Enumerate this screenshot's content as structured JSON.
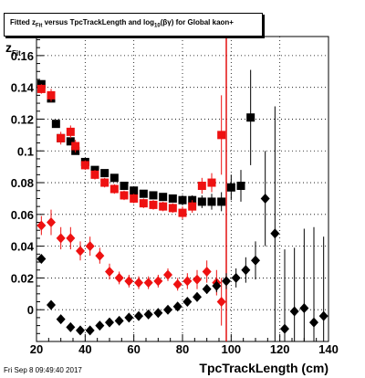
{
  "chart_data": {
    "type": "scatter",
    "title_prefix": "Fitted  z",
    "title_sub": "Fit",
    "title_mid": "  versus TpcTrackLength and log",
    "title_sub2": "10",
    "title_suffix": "(βγ) for Global kaon+",
    "ylabel_main": "z",
    "ylabel_sub": "Fit",
    "xlabel": "TpcTrackLength (cm)",
    "xlim": [
      20,
      140
    ],
    "ylim": [
      -0.02,
      0.172
    ],
    "xticks": [
      20,
      40,
      60,
      80,
      100,
      120,
      140
    ],
    "yticks": [
      0,
      0.02,
      0.04,
      0.06,
      0.08,
      0.1,
      0.12,
      0.14,
      0.16
    ],
    "ytick_labels": [
      "0",
      "0.02",
      "0.04",
      "0.06",
      "0.08",
      "0.1",
      "0.12",
      "0.14",
      "0.16"
    ],
    "grid": true,
    "vline_x": 98,
    "series": [
      {
        "color": "#000000",
        "marker": "square",
        "points": [
          [
            22,
            0.142,
            0.002
          ],
          [
            26,
            0.133,
            0.002
          ],
          [
            28,
            0.117,
            0.002
          ],
          [
            30,
            0.108,
            0.002
          ],
          [
            34,
            0.106,
            0.002
          ],
          [
            36,
            0.1,
            0.002
          ],
          [
            40,
            0.093,
            0.002
          ],
          [
            44,
            0.088,
            0.002
          ],
          [
            48,
            0.086,
            0.002
          ],
          [
            52,
            0.083,
            0.002
          ],
          [
            56,
            0.078,
            0.002
          ],
          [
            60,
            0.075,
            0.002
          ],
          [
            64,
            0.073,
            0.002
          ],
          [
            68,
            0.072,
            0.002
          ],
          [
            72,
            0.071,
            0.002
          ],
          [
            76,
            0.07,
            0.002
          ],
          [
            80,
            0.069,
            0.003
          ],
          [
            84,
            0.069,
            0.003
          ],
          [
            88,
            0.068,
            0.004
          ],
          [
            92,
            0.068,
            0.005
          ],
          [
            96,
            0.068,
            0.006
          ],
          [
            100,
            0.077,
            0.008
          ],
          [
            104,
            0.078,
            0.01
          ],
          [
            108,
            0.121,
            0.03
          ]
        ]
      },
      {
        "color": "#ee1111",
        "marker": "square",
        "points": [
          [
            22,
            0.139,
            0.003
          ],
          [
            26,
            0.135,
            0.004
          ],
          [
            30,
            0.108,
            0.004
          ],
          [
            34,
            0.112,
            0.004
          ],
          [
            36,
            0.103,
            0.004
          ],
          [
            40,
            0.091,
            0.003
          ],
          [
            44,
            0.085,
            0.003
          ],
          [
            48,
            0.08,
            0.003
          ],
          [
            52,
            0.076,
            0.003
          ],
          [
            56,
            0.072,
            0.003
          ],
          [
            60,
            0.07,
            0.003
          ],
          [
            64,
            0.067,
            0.003
          ],
          [
            68,
            0.066,
            0.003
          ],
          [
            72,
            0.065,
            0.003
          ],
          [
            76,
            0.064,
            0.003
          ],
          [
            80,
            0.061,
            0.004
          ],
          [
            84,
            0.065,
            0.004
          ],
          [
            88,
            0.078,
            0.005
          ],
          [
            92,
            0.08,
            0.006
          ],
          [
            96,
            0.11,
            0.025
          ]
        ]
      },
      {
        "color": "#ee1111",
        "marker": "diamond",
        "points": [
          [
            22,
            0.053,
            0.006
          ],
          [
            26,
            0.055,
            0.008
          ],
          [
            30,
            0.045,
            0.007
          ],
          [
            34,
            0.045,
            0.007
          ],
          [
            38,
            0.037,
            0.006
          ],
          [
            42,
            0.04,
            0.006
          ],
          [
            46,
            0.034,
            0.005
          ],
          [
            50,
            0.024,
            0.005
          ],
          [
            54,
            0.02,
            0.004
          ],
          [
            58,
            0.018,
            0.004
          ],
          [
            62,
            0.017,
            0.004
          ],
          [
            66,
            0.017,
            0.004
          ],
          [
            70,
            0.018,
            0.004
          ],
          [
            74,
            0.022,
            0.004
          ],
          [
            78,
            0.016,
            0.004
          ],
          [
            82,
            0.018,
            0.005
          ],
          [
            86,
            0.019,
            0.006
          ],
          [
            90,
            0.024,
            0.007
          ],
          [
            94,
            0.017,
            0.008
          ],
          [
            96,
            0.005,
            0.015
          ]
        ]
      },
      {
        "color": "#000000",
        "marker": "diamond",
        "points": [
          [
            22,
            0.032,
            0.002
          ],
          [
            26,
            0.003,
            0.002
          ],
          [
            30,
            -0.006,
            0.002
          ],
          [
            34,
            -0.011,
            0.002
          ],
          [
            38,
            -0.013,
            0.002
          ],
          [
            42,
            -0.013,
            0.002
          ],
          [
            46,
            -0.01,
            0.002
          ],
          [
            50,
            -0.008,
            0.002
          ],
          [
            54,
            -0.007,
            0.002
          ],
          [
            58,
            -0.005,
            0.002
          ],
          [
            62,
            -0.004,
            0.002
          ],
          [
            66,
            -0.003,
            0.002
          ],
          [
            70,
            -0.002,
            0.002
          ],
          [
            74,
            0.0,
            0.002
          ],
          [
            78,
            0.002,
            0.002
          ],
          [
            82,
            0.005,
            0.002
          ],
          [
            86,
            0.008,
            0.003
          ],
          [
            90,
            0.013,
            0.003
          ],
          [
            94,
            0.015,
            0.004
          ],
          [
            98,
            0.018,
            0.005
          ],
          [
            102,
            0.02,
            0.006
          ],
          [
            106,
            0.025,
            0.008
          ],
          [
            110,
            0.031,
            0.012
          ],
          [
            114,
            0.07,
            0.03
          ],
          [
            118,
            0.048,
            0.08
          ],
          [
            122,
            -0.012,
            0.05
          ],
          [
            126,
            -0.001,
            0.04
          ],
          [
            130,
            0.001,
            0.05
          ],
          [
            134,
            -0.008,
            0.06
          ],
          [
            138,
            -0.004,
            0.05
          ]
        ]
      }
    ]
  },
  "footer": "Fri Sep  8 09:49:40 2017"
}
